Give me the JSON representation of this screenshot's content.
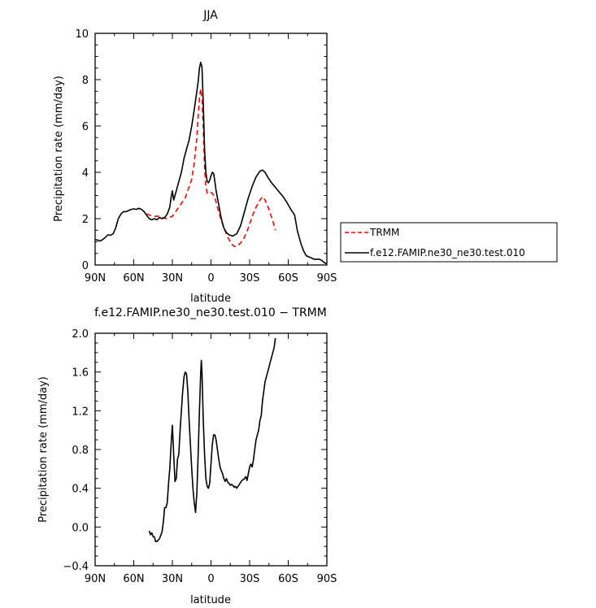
{
  "chart_data": [
    {
      "type": "line",
      "title": "JJA",
      "xlabel": "latitude",
      "ylabel": "Precipitation rate (mm/day)",
      "xlim": [
        90,
        -90
      ],
      "ylim": [
        0,
        10
      ],
      "x_ticks": [
        {
          "value": 90,
          "label": "90N"
        },
        {
          "value": 60,
          "label": "60N"
        },
        {
          "value": 30,
          "label": "30N"
        },
        {
          "value": 0,
          "label": "0"
        },
        {
          "value": -30,
          "label": "30S"
        },
        {
          "value": -60,
          "label": "60S"
        },
        {
          "value": -90,
          "label": "90S"
        }
      ],
      "y_ticks": [
        0,
        2,
        4,
        6,
        8,
        10
      ],
      "legend_position": "right",
      "series": [
        {
          "name": "TRMM",
          "color": "#ff0000",
          "dash": "dashed",
          "points": [
            [
              50,
              2.2
            ],
            [
              45,
              2.1
            ],
            [
              40,
              2.1
            ],
            [
              35,
              2.0
            ],
            [
              30,
              2.1
            ],
            [
              25,
              2.5
            ],
            [
              20,
              2.9
            ],
            [
              15,
              3.7
            ],
            [
              13,
              4.4
            ],
            [
              11,
              5.5
            ],
            [
              10,
              6.4
            ],
            [
              9,
              7.2
            ],
            [
              8,
              7.6
            ],
            [
              7,
              7.2
            ],
            [
              6,
              5.9
            ],
            [
              5,
              4.2
            ],
            [
              4,
              3.4
            ],
            [
              3,
              3.1
            ],
            [
              1,
              3.15
            ],
            [
              -1,
              3.1
            ],
            [
              -3,
              2.9
            ],
            [
              -5,
              2.5
            ],
            [
              -7,
              2.1
            ],
            [
              -10,
              1.6
            ],
            [
              -13,
              1.2
            ],
            [
              -16,
              0.9
            ],
            [
              -18,
              0.8
            ],
            [
              -20,
              0.8
            ],
            [
              -23,
              0.95
            ],
            [
              -26,
              1.2
            ],
            [
              -29,
              1.6
            ],
            [
              -32,
              2.1
            ],
            [
              -35,
              2.5
            ],
            [
              -38,
              2.8
            ],
            [
              -40,
              2.95
            ],
            [
              -42,
              2.8
            ],
            [
              -45,
              2.4
            ],
            [
              -48,
              1.9
            ],
            [
              -50,
              1.5
            ]
          ]
        },
        {
          "name": "f.e12.FAMIP.ne30_ne30.test.010",
          "color": "#000000",
          "dash": "solid",
          "points": [
            [
              90,
              1.1
            ],
            [
              88,
              1.07
            ],
            [
              86,
              1.04
            ],
            [
              84,
              1.1
            ],
            [
              82,
              1.2
            ],
            [
              80,
              1.3
            ],
            [
              78,
              1.28
            ],
            [
              76,
              1.35
            ],
            [
              74,
              1.6
            ],
            [
              72,
              2.0
            ],
            [
              70,
              2.2
            ],
            [
              68,
              2.3
            ],
            [
              66,
              2.3
            ],
            [
              64,
              2.35
            ],
            [
              62,
              2.4
            ],
            [
              60,
              2.42
            ],
            [
              58,
              2.4
            ],
            [
              56,
              2.45
            ],
            [
              54,
              2.4
            ],
            [
              52,
              2.3
            ],
            [
              50,
              2.15
            ],
            [
              48,
              2.0
            ],
            [
              46,
              1.95
            ],
            [
              44,
              2.0
            ],
            [
              42,
              1.95
            ],
            [
              40,
              2.05
            ],
            [
              38,
              2.0
            ],
            [
              36,
              2.05
            ],
            [
              34,
              2.2
            ],
            [
              32,
              2.5
            ],
            [
              31,
              2.9
            ],
            [
              30,
              3.2
            ],
            [
              29,
              2.8
            ],
            [
              27,
              3.2
            ],
            [
              25,
              3.6
            ],
            [
              23,
              4.0
            ],
            [
              21,
              4.6
            ],
            [
              19,
              5.0
            ],
            [
              17,
              5.4
            ],
            [
              15,
              6.0
            ],
            [
              13,
              6.7
            ],
            [
              11,
              7.5
            ],
            [
              10,
              7.9
            ],
            [
              9,
              8.5
            ],
            [
              8,
              8.75
            ],
            [
              7,
              8.55
            ],
            [
              6,
              7.0
            ],
            [
              5,
              5.0
            ],
            [
              4,
              4.0
            ],
            [
              3,
              3.6
            ],
            [
              2,
              3.55
            ],
            [
              1,
              3.65
            ],
            [
              0,
              3.85
            ],
            [
              -1,
              4.0
            ],
            [
              -2,
              3.95
            ],
            [
              -3,
              3.6
            ],
            [
              -4,
              3.2
            ],
            [
              -6,
              2.6
            ],
            [
              -8,
              2.0
            ],
            [
              -10,
              1.6
            ],
            [
              -12,
              1.4
            ],
            [
              -14,
              1.3
            ],
            [
              -17,
              1.25
            ],
            [
              -20,
              1.35
            ],
            [
              -23,
              1.7
            ],
            [
              -26,
              2.3
            ],
            [
              -29,
              2.9
            ],
            [
              -32,
              3.4
            ],
            [
              -35,
              3.8
            ],
            [
              -38,
              4.05
            ],
            [
              -40,
              4.1
            ],
            [
              -42,
              4.0
            ],
            [
              -44,
              3.8
            ],
            [
              -47,
              3.55
            ],
            [
              -50,
              3.35
            ],
            [
              -53,
              3.15
            ],
            [
              -56,
              2.95
            ],
            [
              -59,
              2.7
            ],
            [
              -62,
              2.4
            ],
            [
              -65,
              2.15
            ],
            [
              -67,
              1.5
            ],
            [
              -70,
              0.9
            ],
            [
              -72,
              0.6
            ],
            [
              -74,
              0.4
            ],
            [
              -76,
              0.35
            ],
            [
              -78,
              0.3
            ],
            [
              -80,
              0.25
            ],
            [
              -82,
              0.25
            ],
            [
              -84,
              0.25
            ],
            [
              -86,
              0.2
            ],
            [
              -88,
              0.1
            ],
            [
              -90,
              0.05
            ]
          ]
        }
      ]
    },
    {
      "type": "line",
      "title": "f.e12.FAMIP.ne30_ne30.test.010 − TRMM",
      "xlabel": "latitude",
      "ylabel": "Precipitation rate (mm/day)",
      "xlim": [
        90,
        -90
      ],
      "ylim": [
        -0.4,
        2.0
      ],
      "x_ticks": [
        {
          "value": 90,
          "label": "90N"
        },
        {
          "value": 60,
          "label": "60N"
        },
        {
          "value": 30,
          "label": "30N"
        },
        {
          "value": 0,
          "label": "0"
        },
        {
          "value": -30,
          "label": "30S"
        },
        {
          "value": -60,
          "label": "60S"
        },
        {
          "value": -90,
          "label": "90S"
        }
      ],
      "y_ticks": [
        "−0.4",
        "0.0",
        "0.4",
        "0.8",
        "1.2",
        "1.6",
        "2.0"
      ],
      "y_tick_values": [
        -0.4,
        0.0,
        0.4,
        0.8,
        1.2,
        1.6,
        2.0
      ],
      "series": [
        {
          "color": "#000000",
          "dash": "solid",
          "points": [
            [
              48,
              -0.04
            ],
            [
              47,
              -0.08
            ],
            [
              46,
              -0.06
            ],
            [
              45,
              -0.1
            ],
            [
              44,
              -0.1
            ],
            [
              43,
              -0.15
            ],
            [
              42,
              -0.15
            ],
            [
              40,
              -0.12
            ],
            [
              38,
              -0.05
            ],
            [
              37,
              0.05
            ],
            [
              36,
              0.2
            ],
            [
              35,
              0.2
            ],
            [
              34,
              0.25
            ],
            [
              33,
              0.45
            ],
            [
              32,
              0.6
            ],
            [
              31,
              0.85
            ],
            [
              30,
              1.05
            ],
            [
              29,
              0.75
            ],
            [
              28,
              0.47
            ],
            [
              27,
              0.5
            ],
            [
              26,
              0.7
            ],
            [
              25,
              0.75
            ],
            [
              24,
              1.0
            ],
            [
              23,
              1.2
            ],
            [
              22,
              1.4
            ],
            [
              21,
              1.55
            ],
            [
              20,
              1.6
            ],
            [
              19,
              1.58
            ],
            [
              18,
              1.4
            ],
            [
              17,
              1.1
            ],
            [
              16,
              0.85
            ],
            [
              15,
              0.6
            ],
            [
              14,
              0.4
            ],
            [
              13,
              0.25
            ],
            [
              12,
              0.15
            ],
            [
              11,
              0.35
            ],
            [
              10,
              0.75
            ],
            [
              9,
              1.2
            ],
            [
              8,
              1.58
            ],
            [
              7.5,
              1.72
            ],
            [
              7,
              1.6
            ],
            [
              6,
              1.1
            ],
            [
              5,
              0.75
            ],
            [
              4,
              0.5
            ],
            [
              3,
              0.42
            ],
            [
              2,
              0.4
            ],
            [
              1,
              0.45
            ],
            [
              0,
              0.65
            ],
            [
              -1,
              0.85
            ],
            [
              -2,
              0.95
            ],
            [
              -3,
              0.95
            ],
            [
              -4,
              0.9
            ],
            [
              -5,
              0.8
            ],
            [
              -6,
              0.7
            ],
            [
              -7,
              0.62
            ],
            [
              -8,
              0.58
            ],
            [
              -9,
              0.55
            ],
            [
              -10,
              0.5
            ],
            [
              -11,
              0.47
            ],
            [
              -12,
              0.5
            ],
            [
              -13,
              0.46
            ],
            [
              -14,
              0.45
            ],
            [
              -15,
              0.43
            ],
            [
              -16,
              0.44
            ],
            [
              -17,
              0.43
            ],
            [
              -18,
              0.41
            ],
            [
              -19,
              0.42
            ],
            [
              -20,
              0.4
            ],
            [
              -22,
              0.44
            ],
            [
              -24,
              0.48
            ],
            [
              -26,
              0.5
            ],
            [
              -27,
              0.52
            ],
            [
              -28,
              0.48
            ],
            [
              -29,
              0.55
            ],
            [
              -30,
              0.62
            ],
            [
              -31,
              0.65
            ],
            [
              -32,
              0.62
            ],
            [
              -33,
              0.7
            ],
            [
              -34,
              0.8
            ],
            [
              -35,
              0.9
            ],
            [
              -36,
              0.95
            ],
            [
              -37,
              1.0
            ],
            [
              -38,
              1.1
            ],
            [
              -39,
              1.15
            ],
            [
              -40,
              1.3
            ],
            [
              -41,
              1.4
            ],
            [
              -42,
              1.5
            ],
            [
              -43,
              1.55
            ],
            [
              -44,
              1.6
            ],
            [
              -45,
              1.65
            ],
            [
              -46,
              1.7
            ],
            [
              -47,
              1.75
            ],
            [
              -48,
              1.8
            ],
            [
              -49,
              1.85
            ],
            [
              -50,
              1.95
            ]
          ]
        }
      ]
    }
  ]
}
